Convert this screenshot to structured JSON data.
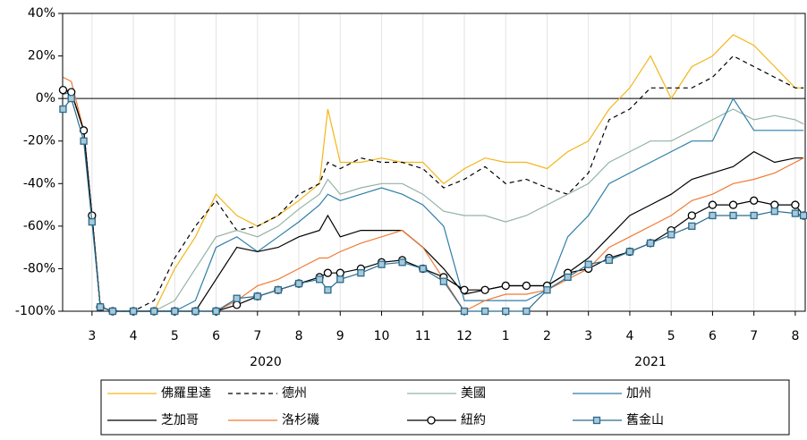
{
  "chart_data": {
    "type": "line",
    "x": [
      2.3,
      2.5,
      2.8,
      3.0,
      3.2,
      3.5,
      4.0,
      4.5,
      5.0,
      5.5,
      6.0,
      6.5,
      7.0,
      7.5,
      8.0,
      8.5,
      8.7,
      9.0,
      9.5,
      10.0,
      10.5,
      11.0,
      11.5,
      12.0,
      12.5,
      13.0,
      13.5,
      14.0,
      14.5,
      15.0,
      15.5,
      16.0,
      16.5,
      17.0,
      17.5,
      18.0,
      18.5,
      19.0,
      19.5,
      20.0,
      20.2
    ],
    "series": [
      {
        "name": "佛羅里達",
        "color": "#f2b619",
        "values": [
          5,
          3,
          -15,
          -55,
          -98,
          -100,
          -100,
          -100,
          -80,
          -65,
          -45,
          -55,
          -60,
          -55,
          -48,
          -40,
          -5,
          -30,
          -30,
          -28,
          -30,
          -30,
          -40,
          -33,
          -28,
          -30,
          -30,
          -33,
          -25,
          -20,
          -5,
          5,
          20,
          0,
          15,
          20,
          30,
          25,
          15,
          5,
          5
        ]
      },
      {
        "name": "德州",
        "color": "#000000",
        "dash": "dashed",
        "values": [
          5,
          3,
          -15,
          -55,
          -98,
          -100,
          -100,
          -95,
          -75,
          -60,
          -48,
          -62,
          -60,
          -55,
          -45,
          -40,
          -30,
          -33,
          -28,
          -30,
          -30,
          -33,
          -42,
          -38,
          -32,
          -40,
          -38,
          -42,
          -45,
          -35,
          -10,
          -5,
          5,
          5,
          5,
          10,
          20,
          15,
          10,
          5,
          5
        ]
      },
      {
        "name": "美國",
        "color": "#93b3a5",
        "values": [
          2,
          3,
          -15,
          -55,
          -98,
          -100,
          -100,
          -100,
          -95,
          -80,
          -65,
          -62,
          -65,
          -60,
          -52,
          -45,
          -38,
          -45,
          -42,
          -40,
          -40,
          -45,
          -53,
          -55,
          -55,
          -58,
          -55,
          -50,
          -45,
          -40,
          -30,
          -25,
          -20,
          -20,
          -15,
          -10,
          -5,
          -10,
          -8,
          -10,
          -12
        ]
      },
      {
        "name": "加州",
        "color": "#2e7ea8",
        "values": [
          2,
          3,
          -15,
          -55,
          -98,
          -100,
          -100,
          -100,
          -100,
          -95,
          -70,
          -65,
          -72,
          -65,
          -58,
          -50,
          -45,
          -48,
          -45,
          -42,
          -45,
          -50,
          -60,
          -95,
          -95,
          -95,
          -95,
          -90,
          -65,
          -55,
          -40,
          -35,
          -30,
          -25,
          -20,
          -20,
          0,
          -15,
          -15,
          -15,
          -15
        ]
      },
      {
        "name": "芝加哥",
        "color": "#000000",
        "values": [
          4,
          3,
          -15,
          -55,
          -98,
          -100,
          -100,
          -100,
          -100,
          -100,
          -85,
          -70,
          -72,
          -70,
          -65,
          -62,
          -55,
          -65,
          -62,
          -62,
          -62,
          -70,
          -80,
          -92,
          -90,
          -88,
          -88,
          -88,
          -82,
          -75,
          -65,
          -55,
          -50,
          -45,
          -38,
          -35,
          -32,
          -25,
          -30,
          -28,
          -28
        ]
      },
      {
        "name": "洛杉磯",
        "color": "#f07a35",
        "values": [
          10,
          8,
          -15,
          -55,
          -98,
          -100,
          -100,
          -100,
          -100,
          -100,
          -100,
          -95,
          -88,
          -85,
          -80,
          -75,
          -75,
          -72,
          -68,
          -65,
          -62,
          -70,
          -85,
          -100,
          -95,
          -92,
          -92,
          -90,
          -85,
          -80,
          -70,
          -65,
          -60,
          -55,
          -48,
          -45,
          -40,
          -38,
          -35,
          -30,
          -28
        ]
      },
      {
        "name": "紐約",
        "color": "#000000",
        "marker": "circle",
        "values": [
          4,
          3,
          -15,
          -55,
          -98,
          -100,
          -100,
          -100,
          -100,
          -100,
          -100,
          -97,
          -93,
          -90,
          -87,
          -84,
          -82,
          -82,
          -80,
          -77,
          -76,
          -80,
          -84,
          -90,
          -90,
          -88,
          -88,
          -88,
          -82,
          -80,
          -75,
          -72,
          -68,
          -62,
          -55,
          -50,
          -50,
          -48,
          -50,
          -50,
          -55
        ]
      },
      {
        "name": "舊金山",
        "color": "#2a6b8f",
        "marker": "square",
        "values": [
          -5,
          0,
          -20,
          -58,
          -98,
          -100,
          -100,
          -100,
          -100,
          -100,
          -100,
          -94,
          -93,
          -90,
          -87,
          -85,
          -90,
          -85,
          -82,
          -78,
          -77,
          -80,
          -86,
          -100,
          -100,
          -100,
          -100,
          -90,
          -84,
          -78,
          -76,
          -72,
          -68,
          -64,
          -60,
          -55,
          -55,
          -55,
          -53,
          -54,
          -55
        ]
      }
    ],
    "xlim": [
      2.29,
      20.24
    ],
    "xticks": [
      3,
      4,
      5,
      6,
      7,
      8,
      9,
      10,
      11,
      12,
      {
        "value": 13,
        "label": "1"
      },
      {
        "value": 14,
        "label": "2"
      },
      {
        "value": 15,
        "label": "3"
      },
      {
        "value": 16,
        "label": "4"
      },
      {
        "value": 17,
        "label": "5"
      },
      {
        "value": 18,
        "label": "6"
      },
      {
        "value": 19,
        "label": "7"
      },
      {
        "value": 20,
        "label": "8"
      }
    ],
    "ylim": [
      -100,
      40
    ],
    "yticks": [
      {
        "value": 40,
        "label": "40%"
      },
      {
        "value": 20,
        "label": "20%"
      },
      {
        "value": 0,
        "label": "0%"
      },
      {
        "value": -20,
        "label": "-20%"
      },
      {
        "value": -40,
        "label": "-40%"
      },
      {
        "value": -60,
        "label": "-60%"
      },
      {
        "value": -80,
        "label": "-80%"
      },
      {
        "value": -100,
        "label": "-100%"
      }
    ],
    "annotations": [
      "2020",
      "2021"
    ],
    "grid": true
  }
}
